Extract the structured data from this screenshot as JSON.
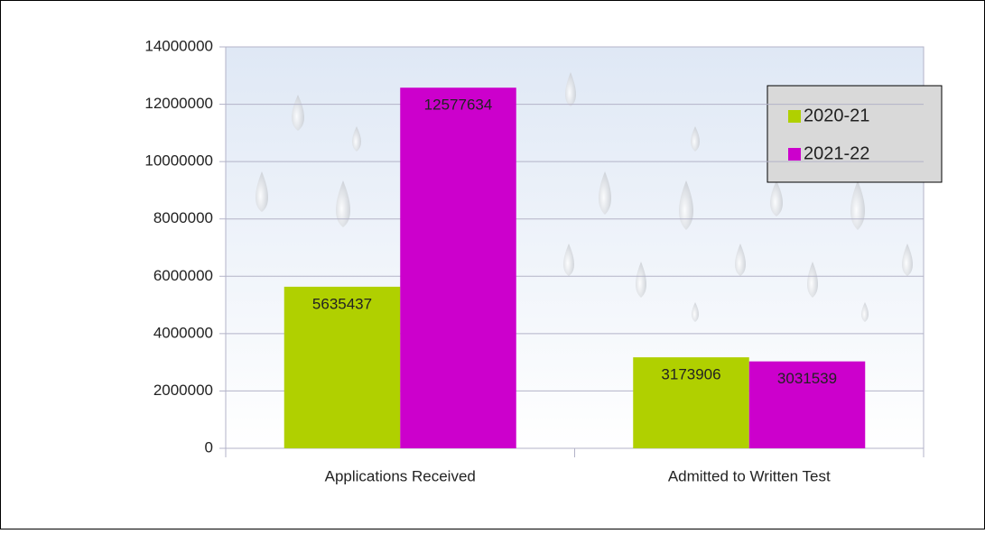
{
  "chart_data": {
    "type": "bar",
    "categories": [
      "Applications Received",
      "Admitted to Written Test"
    ],
    "series": [
      {
        "name": "2020-21",
        "color": "#b0d000",
        "values": [
          5635437,
          3173906
        ]
      },
      {
        "name": "2021-22",
        "color": "#cc00cc",
        "values": [
          12577634,
          3031539
        ]
      }
    ],
    "ylim": [
      0,
      14000000
    ],
    "yticks": [
      0,
      2000000,
      4000000,
      6000000,
      8000000,
      10000000,
      12000000,
      14000000
    ],
    "grid": true,
    "legend": "upper right",
    "data_labels": true
  }
}
